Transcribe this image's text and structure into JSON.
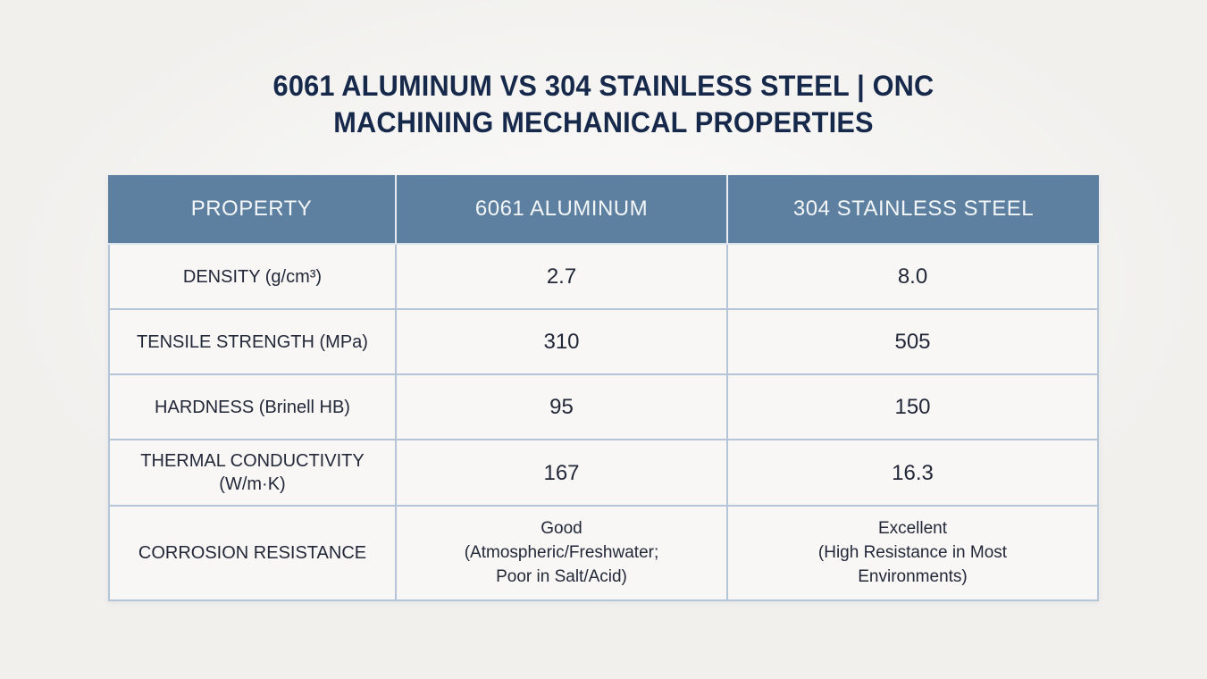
{
  "page": {
    "title_lines": [
      "6061 ALUMINUM VS 304 STAINLESS STEEL | ONC",
      "MACHINING MECHANICAL PROPERTIES"
    ]
  },
  "table": {
    "headers": [
      "PROPERTY",
      "6061 ALUMINUM",
      "304 STAINLESS STEEL"
    ],
    "rows": [
      {
        "cells": [
          "DENSITY (g/cm³)",
          "2.7",
          "8.0"
        ]
      },
      {
        "cells": [
          "TENSILE STRENGTH (MPa)",
          "310",
          "505"
        ]
      },
      {
        "cells": [
          "HARDNESS (Brinell HB)",
          "95",
          "150"
        ]
      },
      {
        "cells": [
          "THERMAL CONDUCTIVITY (W/m·K)",
          "167",
          "16.3"
        ]
      },
      {
        "cells": [
          "CORROSION RESISTANCE",
          "Good\n(Atmospheric/Freshwater;\nPoor in Salt/Acid)",
          "Excellent\n(High Resistance in Most\nEnvironments)"
        ]
      }
    ]
  },
  "colors": {
    "header_bg": "#5e80a0",
    "header_text": "#f3f6f8",
    "cell_bg": "#f8f7f5",
    "grid_border": "#b3c5d6",
    "header_divider": "#dde5ec",
    "title_text": "#16294b",
    "body_text": "#222838",
    "page_bg": "#f1f0ed"
  },
  "chart_data": {
    "type": "table",
    "title": "6061 ALUMINUM VS 304 STAINLESS STEEL | ONC MACHINING MECHANICAL PROPERTIES",
    "columns": [
      "PROPERTY",
      "6061 ALUMINUM",
      "304 STAINLESS STEEL"
    ],
    "rows": [
      [
        "DENSITY (g/cm³)",
        "2.7",
        "8.0"
      ],
      [
        "TENSILE STRENGTH (MPa)",
        "310",
        "505"
      ],
      [
        "HARDNESS (Brinell HB)",
        "95",
        "150"
      ],
      [
        "THERMAL CONDUCTIVITY (W/m·K)",
        "167",
        "16.3"
      ],
      [
        "CORROSION RESISTANCE",
        "Good (Atmospheric/Freshwater; Poor in Salt/Acid)",
        "Excellent (High Resistance in Most Environments)"
      ]
    ],
    "numeric_comparison": {
      "properties": [
        "Density (g/cm³)",
        "Tensile Strength (MPa)",
        "Hardness (Brinell HB)",
        "Thermal Conductivity (W/m·K)"
      ],
      "series": [
        {
          "name": "6061 Aluminum",
          "values": [
            2.7,
            310,
            95,
            167
          ]
        },
        {
          "name": "304 Stainless Steel",
          "values": [
            8.0,
            505,
            150,
            16.3
          ]
        }
      ]
    }
  }
}
